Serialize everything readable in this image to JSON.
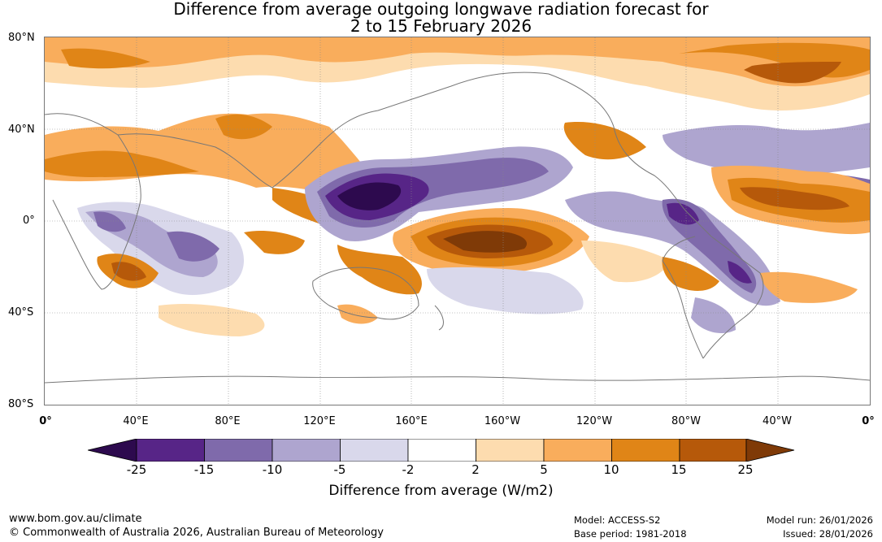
{
  "title": {
    "line1": "Difference from average outgoing longwave radiation forecast for",
    "line2": "2 to 15 February 2026"
  },
  "axes": {
    "lat_labels": [
      "80°N",
      "40°N",
      "0°",
      "40°S",
      "80°S"
    ],
    "lon_labels": [
      "0°",
      "40°E",
      "80°E",
      "120°E",
      "160°E",
      "160°W",
      "120°W",
      "80°W",
      "40°W",
      "0°"
    ]
  },
  "colorbar": {
    "ticks": [
      "-25",
      "-15",
      "-10",
      "-5",
      "-2",
      "2",
      "5",
      "10",
      "15",
      "25"
    ],
    "label": "Difference from average (W/m2)",
    "colors": [
      "#2d0a4e",
      "#572587",
      "#7f6aab",
      "#aea5cf",
      "#d9d8eb",
      "#ffffff",
      "#fddcaf",
      "#f9ad5c",
      "#e08517",
      "#b6590a",
      "#7f3a07"
    ]
  },
  "footer": {
    "website": "www.bom.gov.au/climate",
    "copyright": "© Commonwealth of Australia 2026, Australian Bureau of Meteorology",
    "model": "Model: ACCESS-S2",
    "base_period": "Base period: 1981-2018",
    "model_run": "Model run: 26/01/2026",
    "issued": "Issued: 28/01/2026"
  }
}
